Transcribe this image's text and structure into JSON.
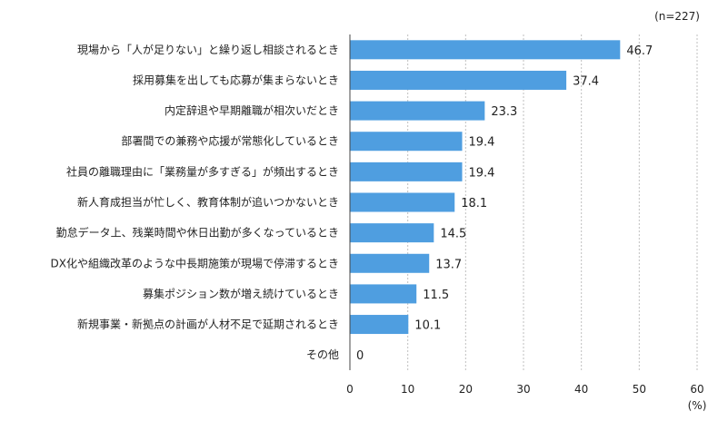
{
  "chart_data": {
    "type": "bar",
    "orientation": "horizontal",
    "note": "(n=227)",
    "unit_label": "(%)",
    "categories": [
      "現場から「人が足りない」と繰り返し相談されるとき",
      "採用募集を出しても応募が集まらないとき",
      "内定辞退や早期離職が相次いだとき",
      "部署間での兼務や応援が常態化しているとき",
      "社員の離職理由に「業務量が多すぎる」が頻出するとき",
      "新人育成担当が忙しく、教育体制が追いつかないとき",
      "勤怠データ上、残業時間や休日出勤が多くなっているとき",
      "DX化や組織改革のような中長期施策が現場で停滞するとき",
      "募集ポジション数が増え続けているとき",
      "新規事業・新拠点の計画が人材不足で延期されるとき",
      "その他"
    ],
    "values": [
      46.7,
      37.4,
      23.3,
      19.4,
      19.4,
      18.1,
      14.5,
      13.7,
      11.5,
      10.1,
      0
    ],
    "value_labels": [
      "46.7",
      "37.4",
      "23.3",
      "19.4",
      "19.4",
      "18.1",
      "14.5",
      "13.7",
      "11.5",
      "10.1",
      "0"
    ],
    "xlim": [
      0,
      60
    ],
    "xticks": [
      "0",
      "10",
      "20",
      "30",
      "40",
      "50",
      "60"
    ],
    "grid": "vertical-dashed",
    "bar_color": "#4f9ee0"
  }
}
